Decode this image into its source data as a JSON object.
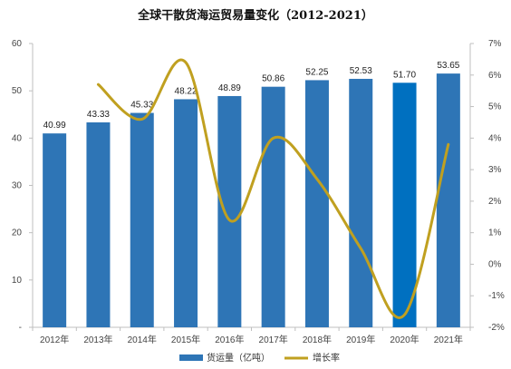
{
  "chart_data": {
    "type": "bar+line",
    "title": "全球干散货海运贸易量变化（2012-2021）",
    "categories": [
      "2012年",
      "2013年",
      "2014年",
      "2015年",
      "2016年",
      "2017年",
      "2018年",
      "2019年",
      "2020年",
      "2021年"
    ],
    "series": [
      {
        "name": "货运量（亿吨）",
        "type": "bar",
        "axis": "left",
        "color": "#2e75b6",
        "values": [
          40.99,
          43.33,
          45.33,
          48.22,
          48.89,
          50.86,
          52.25,
          52.53,
          51.7,
          53.65
        ],
        "labels": [
          "40.99",
          "43.33",
          "45.33",
          "48.22",
          "48.89",
          "50.86",
          "52.25",
          "52.53",
          "51.70",
          "53.65"
        ]
      },
      {
        "name": "增长率",
        "type": "line",
        "axis": "right",
        "color": "#c0a020",
        "values": [
          null,
          5.7,
          4.6,
          6.4,
          1.4,
          4.0,
          2.7,
          0.5,
          -1.6,
          3.8
        ]
      }
    ],
    "yleft": {
      "ylim": [
        0,
        60
      ],
      "ticks": [
        "-",
        "10",
        "20",
        "30",
        "40",
        "50",
        "60"
      ]
    },
    "yright": {
      "ylim": [
        -2,
        7
      ],
      "ticks": [
        "-2%",
        "-1%",
        "0%",
        "1%",
        "2%",
        "3%",
        "4%",
        "5%",
        "6%",
        "7%"
      ]
    },
    "highlight_bar": {
      "index": 8,
      "color": "#0070c0"
    },
    "legend_position": "bottom",
    "grid": false
  }
}
